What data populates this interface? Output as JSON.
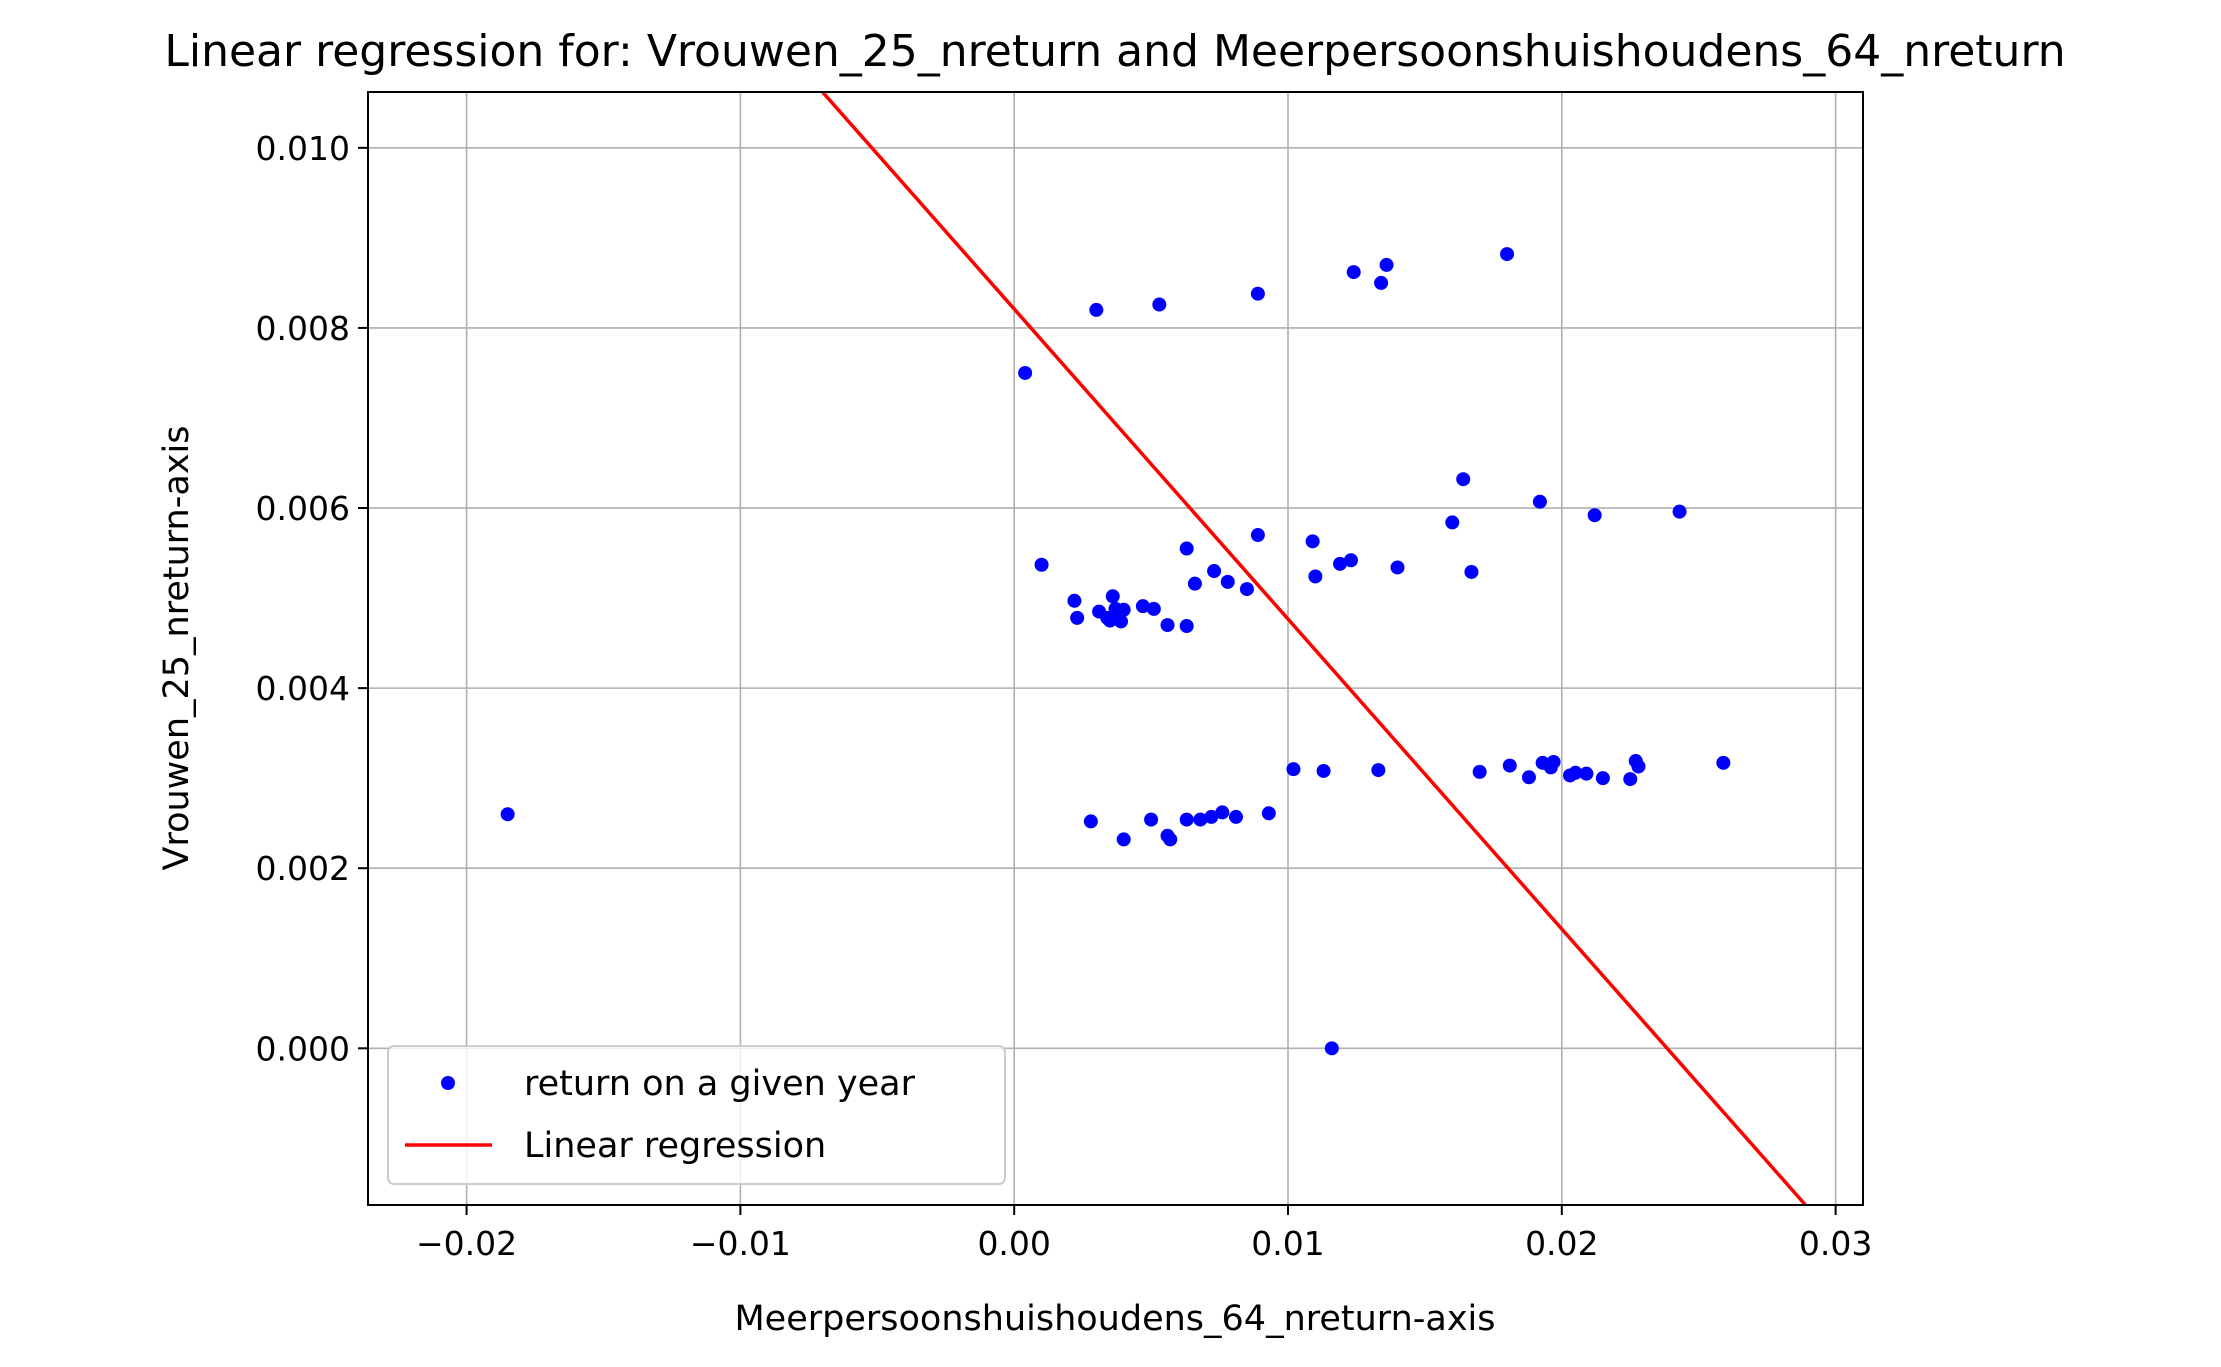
{
  "chart_data": {
    "type": "scatter",
    "title": "Linear regression for: Vrouwen_25_nreturn and Meerpersoonshuishoudens_64_nreturn",
    "xlabel": "Meerpersoonshuishoudens_64_nreturn-axis",
    "ylabel": "Vrouwen_25_nreturn-axis",
    "xlim": [
      -0.0236,
      0.031
    ],
    "ylim": [
      -0.00174,
      0.01062
    ],
    "xticks": [
      -0.02,
      -0.01,
      0.0,
      0.01,
      0.02,
      0.03
    ],
    "xtick_labels": [
      "−0.02",
      "−0.01",
      "0.00",
      "0.01",
      "0.02",
      "0.03"
    ],
    "yticks": [
      0.0,
      0.002,
      0.004,
      0.006,
      0.008,
      0.01
    ],
    "ytick_labels": [
      "0.000",
      "0.002",
      "0.004",
      "0.006",
      "0.008",
      "0.010"
    ],
    "grid": true,
    "legend_position": "lower-left",
    "series": [
      {
        "name": "return on a given year",
        "kind": "scatter",
        "color": "#0000ff",
        "points": [
          [
            -0.0185,
            0.0026
          ],
          [
            0.0004,
            0.0075
          ],
          [
            0.003,
            0.0082
          ],
          [
            0.0053,
            0.00826
          ],
          [
            0.0089,
            0.00838
          ],
          [
            0.0124,
            0.00862
          ],
          [
            0.0134,
            0.0085
          ],
          [
            0.0136,
            0.0087
          ],
          [
            0.018,
            0.00882
          ],
          [
            0.001,
            0.00537
          ],
          [
            0.0022,
            0.00497
          ],
          [
            0.0023,
            0.00478
          ],
          [
            0.0031,
            0.00485
          ],
          [
            0.0034,
            0.00478
          ],
          [
            0.0035,
            0.00475
          ],
          [
            0.0036,
            0.00502
          ],
          [
            0.0037,
            0.00488
          ],
          [
            0.0038,
            0.00482
          ],
          [
            0.0039,
            0.00474
          ],
          [
            0.004,
            0.00487
          ],
          [
            0.0047,
            0.00491
          ],
          [
            0.0051,
            0.00488
          ],
          [
            0.0056,
            0.0047
          ],
          [
            0.0063,
            0.00555
          ],
          [
            0.0063,
            0.00469
          ],
          [
            0.0066,
            0.00516
          ],
          [
            0.0073,
            0.0053
          ],
          [
            0.0078,
            0.00518
          ],
          [
            0.0085,
            0.0051
          ],
          [
            0.0089,
            0.0057
          ],
          [
            0.0109,
            0.00563
          ],
          [
            0.011,
            0.00524
          ],
          [
            0.0119,
            0.00538
          ],
          [
            0.0123,
            0.00542
          ],
          [
            0.014,
            0.00534
          ],
          [
            0.016,
            0.00584
          ],
          [
            0.0164,
            0.00632
          ],
          [
            0.0167,
            0.00529
          ],
          [
            0.0192,
            0.00607
          ],
          [
            0.0212,
            0.00592
          ],
          [
            0.0243,
            0.00596
          ],
          [
            0.0028,
            0.00252
          ],
          [
            0.004,
            0.00232
          ],
          [
            0.005,
            0.00254
          ],
          [
            0.0056,
            0.00236
          ],
          [
            0.0057,
            0.00232
          ],
          [
            0.0063,
            0.00254
          ],
          [
            0.0068,
            0.00254
          ],
          [
            0.0072,
            0.00257
          ],
          [
            0.0076,
            0.00262
          ],
          [
            0.0081,
            0.00257
          ],
          [
            0.0093,
            0.00261
          ],
          [
            0.0102,
            0.0031
          ],
          [
            0.0113,
            0.00308
          ],
          [
            0.0133,
            0.00309
          ],
          [
            0.017,
            0.00307
          ],
          [
            0.0181,
            0.00314
          ],
          [
            0.0188,
            0.00301
          ],
          [
            0.0193,
            0.00317
          ],
          [
            0.0196,
            0.00312
          ],
          [
            0.0197,
            0.00318
          ],
          [
            0.0203,
            0.00303
          ],
          [
            0.0205,
            0.00306
          ],
          [
            0.0209,
            0.00305
          ],
          [
            0.0215,
            0.003
          ],
          [
            0.0225,
            0.00299
          ],
          [
            0.0227,
            0.00319
          ],
          [
            0.0228,
            0.00313
          ],
          [
            0.0259,
            0.00317
          ],
          [
            0.0116,
            0.0
          ]
        ]
      },
      {
        "name": "Linear regression",
        "kind": "line",
        "color": "#ff0000",
        "x": [
          -0.007,
          0.0289
        ],
        "y": [
          0.01062,
          -0.00174
        ]
      }
    ]
  }
}
